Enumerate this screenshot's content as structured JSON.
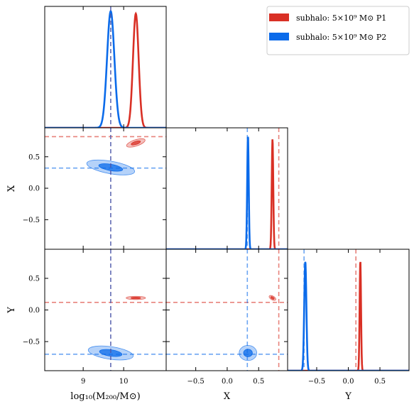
{
  "chart_data": {
    "type": "corner",
    "parameters": [
      "log10_M200",
      "X",
      "Y"
    ],
    "axis_labels": {
      "log10_M200": "log₁₀(M₂₀₀/M⊙)",
      "X": "X",
      "Y": "Y"
    },
    "ranges": {
      "log10_M200": [
        8.05,
        11.05
      ],
      "X": [
        -0.97,
        0.96
      ],
      "Y": [
        -0.96,
        0.96
      ]
    },
    "ticks": {
      "log10_M200": {
        "values": [
          9,
          10
        ],
        "labels": [
          "9",
          "10"
        ]
      },
      "X": {
        "values": [
          -0.5,
          0.0,
          0.5
        ],
        "labels": [
          "−0.5",
          "0.0",
          "0.5"
        ]
      },
      "Y": {
        "values": [
          -0.5,
          0.0,
          0.5
        ],
        "labels": [
          "−0.5",
          "0.0",
          "0.5"
        ]
      }
    },
    "series": [
      {
        "name": "subhalo: 5×10⁹ M⊙ P1",
        "color": "#d93025",
        "truth": {
          "log10_M200": 9.68,
          "X": 0.82,
          "Y": 0.12
        },
        "marginal_peak": {
          "log10_M200": 10.3,
          "X": 0.72,
          "Y": 0.19
        },
        "marginal_width": {
          "log10_M200": 0.07,
          "X": 0.012,
          "Y": 0.011
        },
        "marginal_height": {
          "log10_M200": 0.94,
          "X": 0.91,
          "Y": 0.91
        },
        "joint_contours": [
          {
            "params": [
              "log10_M200",
              "X"
            ],
            "center": [
              10.3,
              0.72
            ],
            "widths": [
              0.12,
              0.025
            ],
            "tilt": -18
          },
          {
            "params": [
              "log10_M200",
              "Y"
            ],
            "center": [
              10.3,
              0.19
            ],
            "widths": [
              0.12,
              0.013
            ],
            "tilt": 0
          },
          {
            "params": [
              "X",
              "Y"
            ],
            "center": [
              0.72,
              0.19
            ],
            "widths": [
              0.03,
              0.015
            ],
            "tilt": 30
          }
        ]
      },
      {
        "name": "subhalo: 5×10⁹ M⊙ P2",
        "color": "#0b6bea",
        "truth": {
          "log10_M200": 9.68,
          "X": 0.32,
          "Y": -0.7
        },
        "marginal_peak": {
          "log10_M200": 9.68,
          "X": 0.33,
          "Y": -0.68
        },
        "marginal_width": {
          "log10_M200": 0.09,
          "X": 0.012,
          "Y": 0.017
        },
        "marginal_height": {
          "log10_M200": 0.96,
          "X": 0.94,
          "Y": 0.9
        },
        "joint_contours": [
          {
            "params": [
              "log10_M200",
              "X"
            ],
            "center": [
              9.68,
              0.33
            ],
            "widths": [
              0.3,
              0.05
            ],
            "tilt": 10
          },
          {
            "params": [
              "log10_M200",
              "Y"
            ],
            "center": [
              9.68,
              -0.68
            ],
            "widths": [
              0.28,
              0.05
            ],
            "tilt": 8
          },
          {
            "params": [
              "X",
              "Y"
            ],
            "center": [
              0.33,
              -0.68
            ],
            "widths": [
              0.07,
              0.06
            ],
            "tilt": 0
          }
        ]
      }
    ],
    "legend": {
      "placement": "top-right"
    },
    "grid": false
  }
}
